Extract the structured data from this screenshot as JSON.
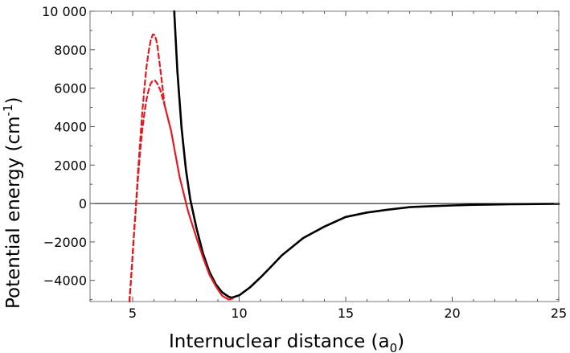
{
  "chart_data": {
    "type": "line",
    "title": "",
    "xlabel": "Internuclear distance (a",
    "xlabel_sub": "0",
    "xlabel_end": ")",
    "ylabel": "Potential energy (cm",
    "ylabel_sup": "-1",
    "ylabel_end": ")",
    "xlim": [
      3,
      25
    ],
    "ylim": [
      -5100,
      10000
    ],
    "xticks": [
      5,
      10,
      15,
      20,
      25
    ],
    "xtick_labels": [
      "5",
      "10",
      "15",
      "20",
      "25"
    ],
    "yticks": [
      -4000,
      -2000,
      0,
      2000,
      4000,
      6000,
      8000,
      10000
    ],
    "ytick_labels": [
      "−4000",
      "−2000",
      "0",
      "2000",
      "4000",
      "6000",
      "8000",
      "10 000"
    ],
    "grid": false,
    "reference_line_y": 0,
    "colors": {
      "black_curve": "#000000",
      "red_curves": "#e8191e"
    },
    "series": [
      {
        "style": "solid",
        "color": "#000000",
        "x": [
          6.95,
          7.1,
          7.3,
          7.5,
          7.7,
          8.0,
          8.3,
          8.6,
          8.9,
          9.2,
          9.5,
          9.65,
          10.0,
          10.5,
          11.0,
          11.5,
          12.0,
          13.0,
          14.0,
          15.0,
          16.0,
          17.0,
          18.0,
          19.0,
          20.0,
          21.0,
          22.0,
          23.0,
          24.0,
          25.0
        ],
        "y": [
          10000,
          6900,
          3900,
          1750,
          230,
          -1300,
          -2600,
          -3550,
          -4200,
          -4620,
          -4850,
          -4900,
          -4780,
          -4370,
          -3850,
          -3280,
          -2700,
          -1800,
          -1200,
          -700,
          -470,
          -320,
          -190,
          -140,
          -100,
          -70,
          -50,
          -35,
          -25,
          -18
        ]
      },
      {
        "style": "solid",
        "color": "#e8191e",
        "x": [
          6.5,
          6.8,
          7.0,
          7.2,
          7.4,
          7.6,
          7.8,
          8.0,
          8.3,
          8.6,
          8.9,
          9.2,
          9.5,
          9.7
        ],
        "y": [
          5100,
          3800,
          2600,
          1400,
          500,
          -400,
          -1100,
          -1800,
          -2800,
          -3700,
          -4300,
          -4800,
          -5000,
          -4950
        ]
      },
      {
        "style": "dashed",
        "color": "#e8191e",
        "x": [
          4.85,
          4.95,
          5.05,
          5.15,
          5.25,
          5.35,
          5.45,
          5.55,
          5.65,
          5.75,
          5.85,
          5.95,
          6.05,
          6.15,
          6.3,
          6.5
        ],
        "y": [
          -5100,
          -3500,
          -1800,
          -200,
          1600,
          3200,
          4700,
          6000,
          7100,
          7900,
          8500,
          8800,
          8750,
          8300,
          7000,
          5100
        ]
      },
      {
        "style": "dashed",
        "color": "#e8191e",
        "x": [
          4.85,
          4.95,
          5.05,
          5.15,
          5.25,
          5.35,
          5.45,
          5.55,
          5.65,
          5.75,
          5.85,
          5.95,
          6.05,
          6.15,
          6.3,
          6.5
        ],
        "y": [
          -5100,
          -3500,
          -1800,
          -200,
          1300,
          2700,
          3800,
          4700,
          5400,
          5900,
          6250,
          6400,
          6400,
          6250,
          5900,
          5100
        ]
      }
    ]
  }
}
